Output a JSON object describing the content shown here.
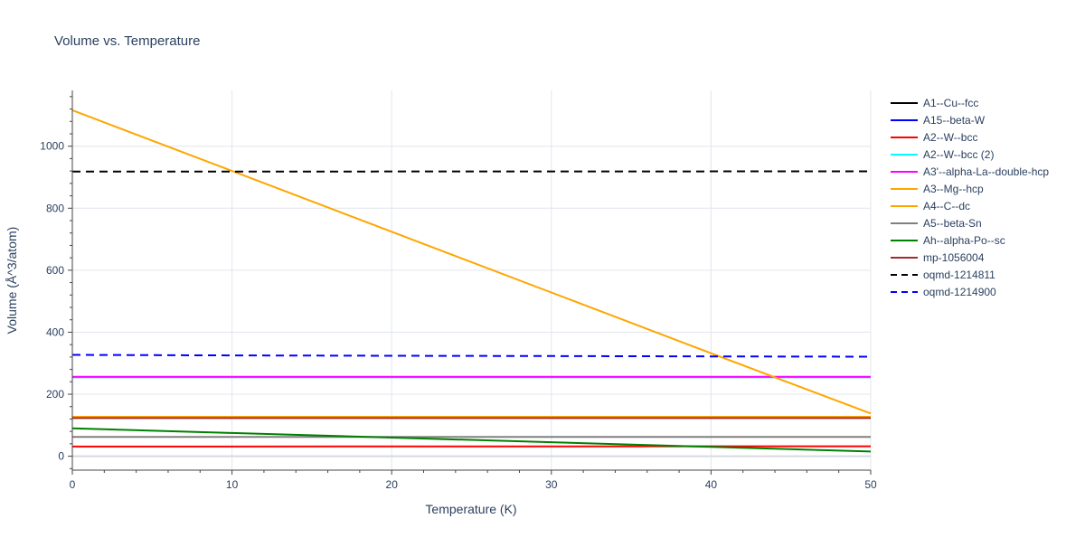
{
  "chart_data": {
    "type": "line",
    "title": "Volume vs. Temperature",
    "xlabel": "Temperature (K)",
    "ylabel": "Volume (Å^3/atom)",
    "xlim": [
      0,
      50
    ],
    "ylim": [
      -45,
      1180
    ],
    "xticks": [
      0,
      10,
      20,
      30,
      40,
      50
    ],
    "yticks": [
      0,
      200,
      400,
      600,
      800,
      1000
    ],
    "grid": true,
    "legend_position": "right",
    "series": [
      {
        "name": "A1--Cu--fcc",
        "color": "#000000",
        "dash": "solid",
        "x": [
          0,
          50
        ],
        "y": [
          125,
          125
        ]
      },
      {
        "name": "A15--beta-W",
        "color": "#0000ff",
        "dash": "solid",
        "x": [
          0,
          50
        ],
        "y": [
          255,
          255
        ]
      },
      {
        "name": "A2--W--bcc",
        "color": "#ff0000",
        "dash": "solid",
        "x": [
          0,
          50
        ],
        "y": [
          31,
          32
        ]
      },
      {
        "name": "A2--W--bcc (2)",
        "color": "#00ffff",
        "dash": "solid",
        "x": [
          0,
          50
        ],
        "y": [
          255,
          255
        ]
      },
      {
        "name": "A3'--alpha-La--double-hcp",
        "color": "#ff00ff",
        "dash": "solid",
        "x": [
          0,
          50
        ],
        "y": [
          256,
          256
        ]
      },
      {
        "name": "A3--Mg--hcp",
        "color": "#ffa500",
        "dash": "solid",
        "x": [
          0,
          50
        ],
        "y": [
          127,
          127
        ]
      },
      {
        "name": "A4--C--dc",
        "color": "#ffa500",
        "dash": "solid",
        "x": [
          0,
          10,
          20,
          30,
          40,
          50
        ],
        "y": [
          1116,
          920,
          724,
          528,
          332,
          138
        ]
      },
      {
        "name": "A5--beta-Sn",
        "color": "#808080",
        "dash": "solid",
        "x": [
          0,
          50
        ],
        "y": [
          62,
          62
        ]
      },
      {
        "name": "Ah--alpha-Po--sc",
        "color": "#008000",
        "dash": "solid",
        "x": [
          0,
          10,
          20,
          30,
          40,
          50
        ],
        "y": [
          90,
          75,
          60,
          45,
          30,
          15
        ]
      },
      {
        "name": "mp-1056004",
        "color": "#a52a2a",
        "dash": "solid",
        "x": [
          0,
          50
        ],
        "y": [
          123,
          123
        ]
      },
      {
        "name": "oqmd-1214811",
        "color": "#000000",
        "dash": "dash",
        "x": [
          0,
          50
        ],
        "y": [
          918,
          919
        ]
      },
      {
        "name": "oqmd-1214900",
        "color": "#0000ff",
        "dash": "dash",
        "x": [
          0,
          10,
          20,
          30,
          40,
          50
        ],
        "y": [
          327,
          325,
          324,
          323,
          322,
          321
        ]
      }
    ]
  }
}
